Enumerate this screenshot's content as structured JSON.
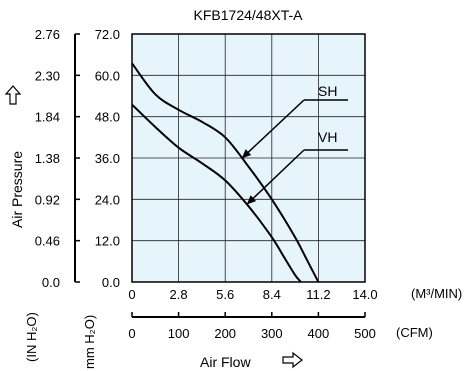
{
  "chart_data": {
    "type": "line",
    "title": "KFB1724/48XT-A",
    "ylabel": "Air Pressure",
    "xlabel": "Air Flow",
    "x_unit_primary": "(M³/MIN)",
    "x_unit_secondary": "(CFM)",
    "y_unit_left": "(IN H₂O)",
    "y_unit_right": "mm H₂O)",
    "xlim": [
      0,
      14.0
    ],
    "ylim": [
      0,
      72.0
    ],
    "grid": true,
    "background_color": "#e6f4fc",
    "x_ticks": [
      "0",
      "2.8",
      "5.6",
      "8.4",
      "11.2",
      "14.0"
    ],
    "x_ticks_values": [
      0,
      2.8,
      5.6,
      8.4,
      11.2,
      14.0
    ],
    "cfm_ticks": [
      "0",
      "100",
      "200",
      "300",
      "400",
      "500"
    ],
    "cfm_ticks_values": [
      0,
      100,
      200,
      300,
      400,
      500
    ],
    "y_ticks_mm": [
      "0.0",
      "12.0",
      "24.0",
      "36.0",
      "48.0",
      "60.0",
      "72.0"
    ],
    "y_ticks_mm_values": [
      0,
      12,
      24,
      36,
      48,
      60,
      72
    ],
    "y_ticks_in": [
      "0.0",
      "0.46",
      "0.92",
      "1.38",
      "1.84",
      "2.30",
      "2.76"
    ],
    "series": [
      {
        "name": "SH",
        "points": [
          [
            0,
            63.5
          ],
          [
            1.4,
            54.5
          ],
          [
            2.8,
            50.0
          ],
          [
            4.2,
            46.5
          ],
          [
            5.6,
            42.0
          ],
          [
            7.0,
            33.5
          ],
          [
            8.4,
            24.0
          ],
          [
            9.8,
            13.0
          ],
          [
            10.5,
            6.5
          ],
          [
            11.2,
            0
          ]
        ]
      },
      {
        "name": "VH",
        "points": [
          [
            0,
            51.5
          ],
          [
            1.4,
            45.0
          ],
          [
            2.8,
            39.0
          ],
          [
            4.2,
            34.5
          ],
          [
            5.6,
            29.5
          ],
          [
            7.0,
            22.0
          ],
          [
            8.4,
            13.0
          ],
          [
            9.1,
            7.5
          ],
          [
            9.8,
            2.0
          ],
          [
            10.15,
            0
          ]
        ]
      }
    ]
  }
}
